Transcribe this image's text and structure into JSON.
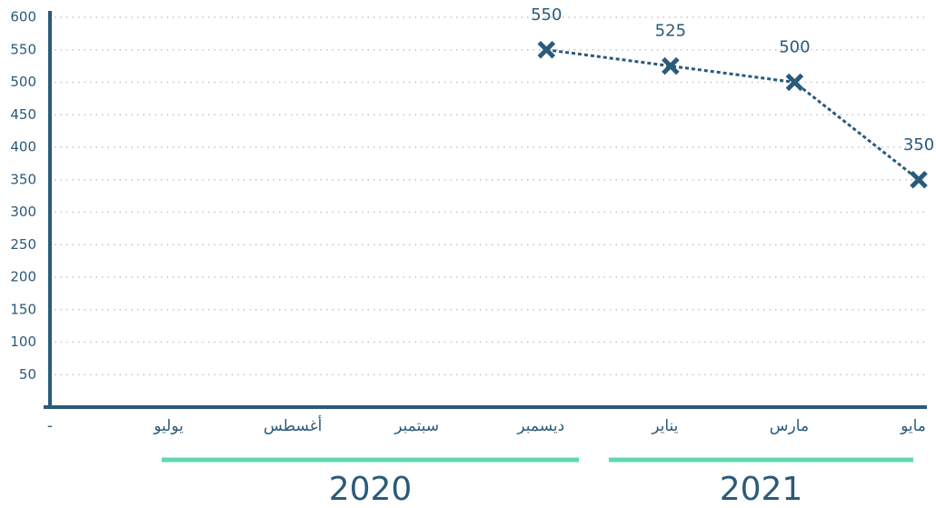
{
  "chart_data": {
    "type": "line",
    "categories": [
      "-",
      "يوليو",
      "أغسطس",
      "سبتمبر",
      "ديسمبر",
      "يناير",
      "مارس",
      "مايو"
    ],
    "series": [
      {
        "color": "#2b5a7a",
        "values": [
          null,
          null,
          null,
          null,
          550,
          525,
          500,
          350
        ]
      }
    ],
    "ylim": [
      0,
      600
    ],
    "yticks": [
      50,
      100,
      150,
      200,
      250,
      300,
      350,
      400,
      450,
      500,
      550,
      600
    ],
    "grid": true,
    "groups": [
      "2020",
      "2021"
    ],
    "group_color": "#5fd8b2"
  }
}
